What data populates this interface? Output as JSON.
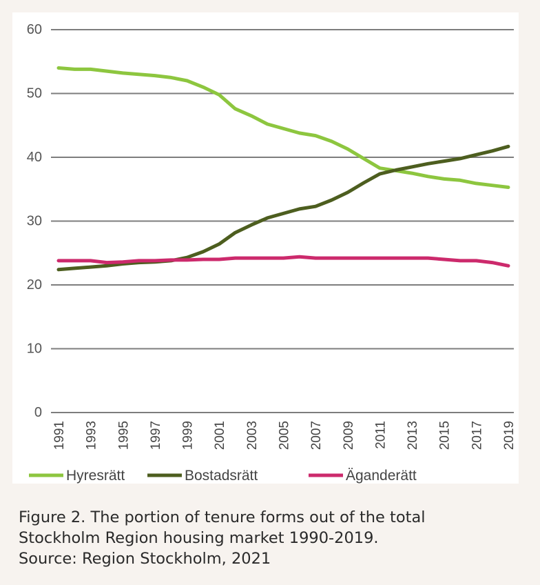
{
  "chart_data": {
    "type": "line",
    "title": "",
    "xlabel": "",
    "ylabel": "",
    "ylim": [
      0,
      60
    ],
    "yticks": [
      0,
      10,
      20,
      30,
      40,
      50,
      60
    ],
    "x": [
      1991,
      1992,
      1993,
      1994,
      1995,
      1996,
      1997,
      1998,
      1999,
      2000,
      2001,
      2002,
      2003,
      2004,
      2005,
      2006,
      2007,
      2008,
      2009,
      2010,
      2011,
      2012,
      2013,
      2014,
      2015,
      2016,
      2017,
      2018,
      2019
    ],
    "xtick_labels": [
      "1991",
      "1993",
      "1995",
      "1997",
      "1999",
      "2001",
      "2003",
      "2005",
      "2007",
      "2009",
      "2011",
      "2013",
      "2015",
      "2017",
      "2019"
    ],
    "series": [
      {
        "name": "Hyresrätt",
        "color": "#8dc63f",
        "values": [
          54.0,
          53.8,
          53.8,
          53.5,
          53.2,
          53.0,
          52.8,
          52.5,
          52.0,
          51.0,
          49.8,
          47.6,
          46.5,
          45.2,
          44.5,
          43.8,
          43.4,
          42.5,
          41.3,
          39.8,
          38.3,
          37.9,
          37.5,
          37.0,
          36.6,
          36.4,
          35.9,
          35.6,
          35.3
        ]
      },
      {
        "name": "Bostadsrätt",
        "color": "#4d5e1f",
        "values": [
          22.4,
          22.6,
          22.8,
          23.0,
          23.3,
          23.5,
          23.6,
          23.8,
          24.3,
          25.2,
          26.4,
          28.2,
          29.4,
          30.5,
          31.2,
          31.9,
          32.3,
          33.3,
          34.5,
          36.0,
          37.4,
          38.0,
          38.5,
          39.0,
          39.4,
          39.8,
          40.4,
          41.0,
          41.7
        ]
      },
      {
        "name": "Äganderätt",
        "color": "#cc2a6c",
        "values": [
          23.8,
          23.8,
          23.8,
          23.5,
          23.6,
          23.8,
          23.8,
          23.9,
          23.9,
          24.0,
          24.0,
          24.2,
          24.2,
          24.2,
          24.2,
          24.4,
          24.2,
          24.2,
          24.2,
          24.2,
          24.2,
          24.2,
          24.2,
          24.2,
          24.0,
          23.8,
          23.8,
          23.5,
          23.0
        ]
      }
    ],
    "legend_position": "bottom"
  },
  "caption": {
    "line1": "Figure 2. The portion of tenure forms out of the total",
    "line2": "Stockholm Region housing market  1990-2019.",
    "line3": "Source: Region Stockholm, 2021"
  }
}
